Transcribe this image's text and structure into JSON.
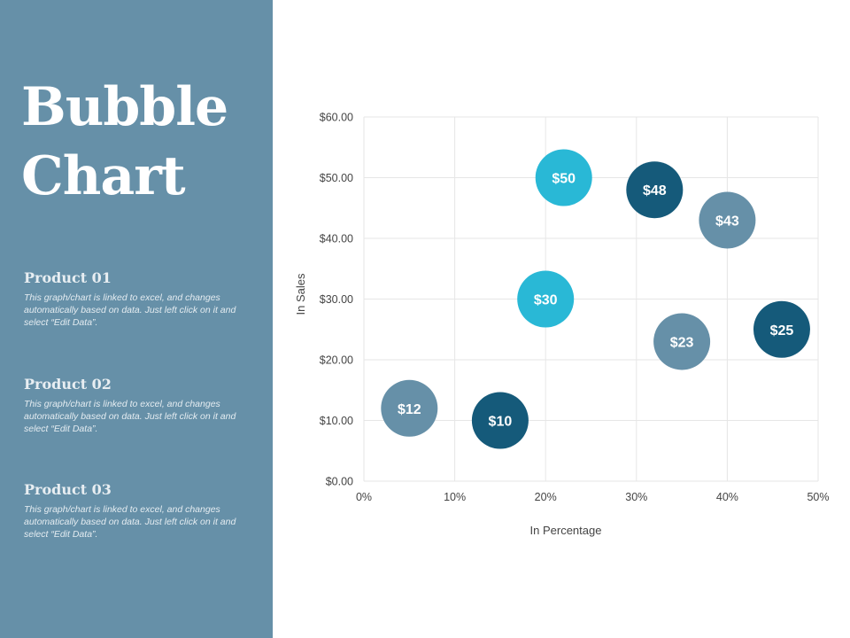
{
  "sidebar": {
    "title_line1": "Bubble",
    "title_line2": "Chart",
    "products": [
      {
        "name": "Product 01",
        "description": "This graph/chart is linked to excel, and changes automatically based on data. Just left click on it and select “Edit Data”."
      },
      {
        "name": "Product 02",
        "description": "This graph/chart is linked to excel, and changes automatically based on data. Just left click on it and select “Edit Data”."
      },
      {
        "name": "Product 03",
        "description": "This graph/chart is linked to excel, and changes automatically based on data. Just left click on it and select “Edit Data”."
      }
    ]
  },
  "colors": {
    "sidebar_bg": "#6690a8",
    "bubble_light": "#29b8d6",
    "bubble_dark": "#155a7a",
    "bubble_mid": "#6690a8"
  },
  "chart_data": {
    "type": "scatter",
    "subtype": "bubble",
    "xlabel": "In Percentage",
    "ylabel": "In Sales",
    "xlim": [
      0,
      0.5
    ],
    "ylim": [
      0,
      60
    ],
    "x_ticks": [
      "0%",
      "10%",
      "20%",
      "30%",
      "40%",
      "50%"
    ],
    "y_ticks": [
      "$0.00",
      "$10.00",
      "$20.00",
      "$30.00",
      "$40.00",
      "$50.00",
      "$60.00"
    ],
    "grid": true,
    "series": [
      {
        "color": "#29b8d6",
        "points": [
          {
            "x": 0.22,
            "y": 50,
            "label": "$50"
          },
          {
            "x": 0.2,
            "y": 30,
            "label": "$30"
          }
        ]
      },
      {
        "color": "#155a7a",
        "points": [
          {
            "x": 0.32,
            "y": 48,
            "label": "$48"
          },
          {
            "x": 0.46,
            "y": 25,
            "label": "$25"
          },
          {
            "x": 0.15,
            "y": 10,
            "label": "$10"
          }
        ]
      },
      {
        "color": "#6690a8",
        "points": [
          {
            "x": 0.4,
            "y": 43,
            "label": "$43"
          },
          {
            "x": 0.35,
            "y": 23,
            "label": "$23"
          },
          {
            "x": 0.05,
            "y": 12,
            "label": "$12"
          }
        ]
      }
    ]
  }
}
